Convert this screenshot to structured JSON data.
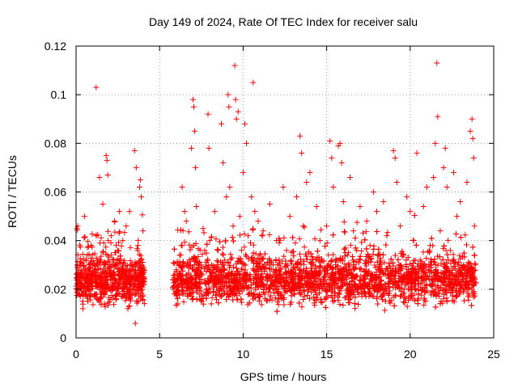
{
  "chart_data": {
    "type": "scatter",
    "title": "Day 149 of 2024, Rate Of TEC Index for receiver salu",
    "xlabel": "GPS time / hours",
    "ylabel": "ROTI / TECUs",
    "xlim": [
      0,
      25
    ],
    "ylim": [
      0,
      0.12
    ],
    "xticks": [
      0,
      5,
      10,
      15,
      20,
      25
    ],
    "xtick_labels": [
      "0",
      "5",
      "10",
      "15",
      "20",
      "25"
    ],
    "yticks": [
      0,
      0.02,
      0.04,
      0.06,
      0.08,
      0.1,
      0.12
    ],
    "ytick_labels": [
      "0",
      "0.02",
      "0.04",
      "0.06",
      "0.08",
      "0.1",
      "0.12"
    ],
    "grid": true,
    "marker": "+",
    "color": "#ff0000",
    "series": [
      {
        "name": "ROTI",
        "points": [
          [
            0.05,
            0.045
          ],
          [
            0.1,
            0.046
          ],
          [
            0.15,
            0.028
          ],
          [
            0.2,
            0.018
          ],
          [
            0.3,
            0.022
          ],
          [
            0.4,
            0.012
          ],
          [
            0.5,
            0.05
          ],
          [
            0.6,
            0.024
          ],
          [
            0.7,
            0.015
          ],
          [
            0.8,
            0.02
          ],
          [
            0.9,
            0.038
          ],
          [
            1.0,
            0.026
          ],
          [
            1.1,
            0.018
          ],
          [
            1.2,
            0.103
          ],
          [
            1.3,
            0.032
          ],
          [
            1.4,
            0.066
          ],
          [
            1.5,
            0.022
          ],
          [
            1.6,
            0.055
          ],
          [
            1.7,
            0.014
          ],
          [
            1.8,
            0.075
          ],
          [
            1.85,
            0.073
          ],
          [
            1.9,
            0.067
          ],
          [
            2.0,
            0.03
          ],
          [
            2.1,
            0.042
          ],
          [
            2.2,
            0.02
          ],
          [
            2.3,
            0.048
          ],
          [
            2.4,
            0.016
          ],
          [
            2.5,
            0.036
          ],
          [
            2.6,
            0.052
          ],
          [
            2.7,
            0.025
          ],
          [
            2.8,
            0.04
          ],
          [
            2.9,
            0.018
          ],
          [
            3.0,
            0.046
          ],
          [
            3.1,
            0.012
          ],
          [
            3.2,
            0.052
          ],
          [
            3.3,
            0.028
          ],
          [
            3.4,
            0.02
          ],
          [
            3.5,
            0.077
          ],
          [
            3.55,
            0.006
          ],
          [
            3.6,
            0.07
          ],
          [
            3.7,
            0.038
          ],
          [
            3.8,
            0.062
          ],
          [
            3.85,
            0.065
          ],
          [
            3.9,
            0.058
          ],
          [
            4.0,
            0.044
          ],
          [
            4.05,
            0.022
          ],
          [
            5.8,
            0.024
          ],
          [
            5.9,
            0.018
          ],
          [
            6.0,
            0.028
          ],
          [
            6.1,
            0.014
          ],
          [
            6.2,
            0.034
          ],
          [
            6.3,
            0.038
          ],
          [
            6.35,
            0.062
          ],
          [
            6.4,
            0.022
          ],
          [
            6.5,
            0.052
          ],
          [
            6.6,
            0.048
          ],
          [
            6.7,
            0.03
          ],
          [
            6.8,
            0.018
          ],
          [
            6.9,
            0.078
          ],
          [
            7.0,
            0.098
          ],
          [
            7.05,
            0.095
          ],
          [
            7.1,
            0.085
          ],
          [
            7.15,
            0.07
          ],
          [
            7.2,
            0.054
          ],
          [
            7.3,
            0.022
          ],
          [
            7.4,
            0.016
          ],
          [
            7.5,
            0.03
          ],
          [
            7.6,
            0.045
          ],
          [
            7.7,
            0.036
          ],
          [
            7.8,
            0.02
          ],
          [
            7.9,
            0.092
          ],
          [
            7.95,
            0.078
          ],
          [
            8.0,
            0.04
          ],
          [
            8.1,
            0.014
          ],
          [
            8.2,
            0.028
          ],
          [
            8.3,
            0.052
          ],
          [
            8.4,
            0.024
          ],
          [
            8.5,
            0.036
          ],
          [
            8.6,
            0.018
          ],
          [
            8.7,
            0.088
          ],
          [
            8.8,
            0.072
          ],
          [
            8.9,
            0.032
          ],
          [
            9.0,
            0.058
          ],
          [
            9.1,
            0.1
          ],
          [
            9.15,
            0.095
          ],
          [
            9.2,
            0.062
          ],
          [
            9.3,
            0.02
          ],
          [
            9.4,
            0.046
          ],
          [
            9.5,
            0.112
          ],
          [
            9.55,
            0.098
          ],
          [
            9.6,
            0.09
          ],
          [
            9.7,
            0.093
          ],
          [
            9.8,
            0.05
          ],
          [
            9.9,
            0.036
          ],
          [
            10.0,
            0.068
          ],
          [
            10.1,
            0.088
          ],
          [
            10.2,
            0.08
          ],
          [
            10.3,
            0.042
          ],
          [
            10.4,
            0.018
          ],
          [
            10.5,
            0.058
          ],
          [
            10.6,
            0.105
          ],
          [
            10.7,
            0.052
          ],
          [
            10.8,
            0.026
          ],
          [
            10.9,
            0.048
          ],
          [
            11.0,
            0.034
          ],
          [
            11.2,
            0.044
          ],
          [
            11.4,
            0.02
          ],
          [
            11.6,
            0.055
          ],
          [
            11.8,
            0.03
          ],
          [
            12.0,
            0.04
          ],
          [
            12.2,
            0.024
          ],
          [
            12.4,
            0.062
          ],
          [
            12.6,
            0.036
          ],
          [
            12.8,
            0.05
          ],
          [
            13.0,
            0.028
          ],
          [
            13.2,
            0.058
          ],
          [
            13.4,
            0.083
          ],
          [
            13.5,
            0.076
          ],
          [
            13.6,
            0.046
          ],
          [
            13.8,
            0.064
          ],
          [
            14.0,
            0.068
          ],
          [
            14.2,
            0.03
          ],
          [
            14.4,
            0.054
          ],
          [
            14.6,
            0.04
          ],
          [
            14.8,
            0.022
          ],
          [
            15.0,
            0.046
          ],
          [
            15.2,
            0.081
          ],
          [
            15.3,
            0.074
          ],
          [
            15.4,
            0.062
          ],
          [
            15.6,
            0.032
          ],
          [
            15.7,
            0.079
          ],
          [
            15.8,
            0.08
          ],
          [
            15.9,
            0.072
          ],
          [
            16.0,
            0.056
          ],
          [
            16.2,
            0.028
          ],
          [
            16.4,
            0.066
          ],
          [
            16.6,
            0.044
          ],
          [
            16.8,
            0.036
          ],
          [
            17.0,
            0.054
          ],
          [
            17.2,
            0.024
          ],
          [
            17.4,
            0.048
          ],
          [
            17.6,
            0.038
          ],
          [
            17.8,
            0.06
          ],
          [
            18.0,
            0.052
          ],
          [
            18.2,
            0.03
          ],
          [
            18.4,
            0.056
          ],
          [
            18.6,
            0.042
          ],
          [
            18.8,
            0.026
          ],
          [
            19.0,
            0.077
          ],
          [
            19.1,
            0.074
          ],
          [
            19.2,
            0.064
          ],
          [
            19.4,
            0.046
          ],
          [
            19.6,
            0.034
          ],
          [
            19.8,
            0.058
          ],
          [
            20.0,
            0.052
          ],
          [
            20.2,
            0.04
          ],
          [
            20.4,
            0.076
          ],
          [
            20.6,
            0.032
          ],
          [
            20.8,
            0.054
          ],
          [
            21.0,
            0.062
          ],
          [
            21.2,
            0.038
          ],
          [
            21.4,
            0.066
          ],
          [
            21.5,
            0.08
          ],
          [
            21.6,
            0.113
          ],
          [
            21.65,
            0.091
          ],
          [
            21.8,
            0.044
          ],
          [
            22.0,
            0.07
          ],
          [
            22.1,
            0.078
          ],
          [
            22.2,
            0.062
          ],
          [
            22.4,
            0.036
          ],
          [
            22.6,
            0.068
          ],
          [
            22.8,
            0.05
          ],
          [
            23.0,
            0.056
          ],
          [
            23.2,
            0.03
          ],
          [
            23.4,
            0.064
          ],
          [
            23.6,
            0.085
          ],
          [
            23.7,
            0.09
          ],
          [
            23.75,
            0.082
          ],
          [
            23.8,
            0.074
          ],
          [
            23.85,
            0.046
          ],
          [
            23.9,
            0.03
          ]
        ],
        "band": {
          "segments": [
            [
              0.0,
              4.1
            ],
            [
              5.8,
              23.95
            ]
          ],
          "typical_min": 0.01,
          "typical_max": 0.034
        }
      }
    ]
  }
}
